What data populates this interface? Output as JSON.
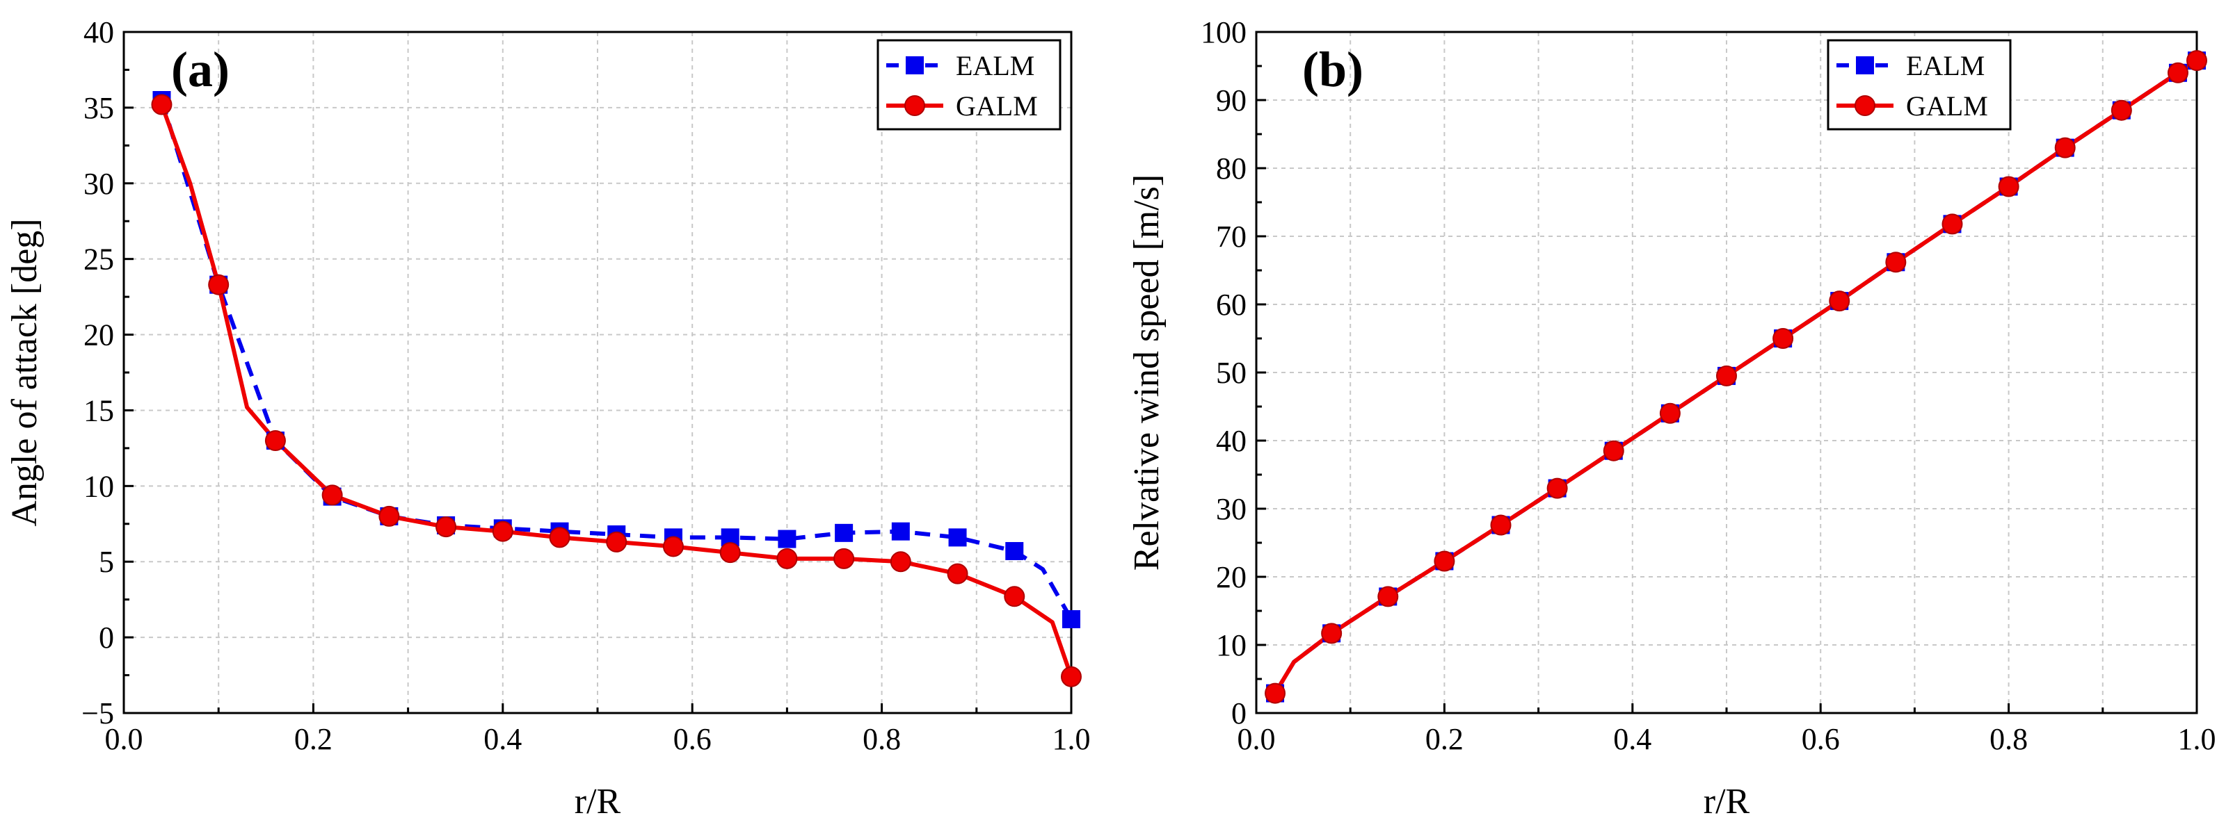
{
  "chart_data": [
    {
      "type": "line",
      "panel_label": "(a)",
      "xlabel": "r/R",
      "ylabel": "Angle of attack [deg]",
      "xlim": [
        0.0,
        1.0
      ],
      "ylim": [
        -5,
        40
      ],
      "xticks": [
        0.0,
        0.2,
        0.4,
        0.6,
        0.8,
        1.0
      ],
      "xtick_labels": [
        "0.0",
        "0.2",
        "0.4",
        "0.6",
        "0.8",
        "1.0"
      ],
      "yticks": [
        -5,
        0,
        5,
        10,
        15,
        20,
        25,
        30,
        35,
        40
      ],
      "ytick_labels": [
        "−5",
        "0",
        "5",
        "10",
        "15",
        "20",
        "25",
        "30",
        "35",
        "40"
      ],
      "grid": true,
      "legend_position": "top-right",
      "series": [
        {
          "name": "EALM",
          "color": "#0000ee",
          "line": "dashed",
          "marker": "square",
          "x": [
            0.04,
            0.1,
            0.16,
            0.22,
            0.28,
            0.34,
            0.4,
            0.46,
            0.52,
            0.58,
            0.64,
            0.7,
            0.76,
            0.82,
            0.88,
            0.94,
            0.97,
            1.0
          ],
          "values": [
            35.5,
            23.3,
            13.0,
            9.3,
            8.0,
            7.4,
            7.2,
            7.0,
            6.8,
            6.6,
            6.6,
            6.5,
            6.9,
            7.0,
            6.6,
            5.7,
            4.5,
            1.2
          ],
          "marker_x": [
            0.04,
            0.1,
            0.16,
            0.22,
            0.28,
            0.34,
            0.4,
            0.46,
            0.52,
            0.58,
            0.64,
            0.7,
            0.76,
            0.82,
            0.88,
            0.94,
            1.0
          ]
        },
        {
          "name": "GALM",
          "color": "#ee0000",
          "line": "solid",
          "marker": "circle",
          "x": [
            0.04,
            0.07,
            0.1,
            0.13,
            0.16,
            0.22,
            0.28,
            0.34,
            0.4,
            0.46,
            0.52,
            0.58,
            0.64,
            0.7,
            0.76,
            0.82,
            0.88,
            0.94,
            0.98,
            1.0
          ],
          "values": [
            35.2,
            30.0,
            23.3,
            15.2,
            13.0,
            9.4,
            8.0,
            7.3,
            7.0,
            6.6,
            6.3,
            6.0,
            5.6,
            5.2,
            5.2,
            5.0,
            4.2,
            2.7,
            1.0,
            -2.6
          ],
          "marker_x": [
            0.04,
            0.1,
            0.16,
            0.22,
            0.28,
            0.34,
            0.4,
            0.46,
            0.52,
            0.58,
            0.64,
            0.7,
            0.76,
            0.82,
            0.88,
            0.94,
            1.0
          ]
        }
      ]
    },
    {
      "type": "line",
      "panel_label": "(b)",
      "xlabel": "r/R",
      "ylabel": "Relvative wind speed [m/s]",
      "xlim": [
        0.0,
        1.0
      ],
      "ylim": [
        0,
        100
      ],
      "xticks": [
        0.0,
        0.2,
        0.4,
        0.6,
        0.8,
        1.0
      ],
      "xtick_labels": [
        "0.0",
        "0.2",
        "0.4",
        "0.6",
        "0.8",
        "1.0"
      ],
      "yticks": [
        0,
        10,
        20,
        30,
        40,
        50,
        60,
        70,
        80,
        90,
        100
      ],
      "ytick_labels": [
        "0",
        "10",
        "20",
        "30",
        "40",
        "50",
        "60",
        "70",
        "80",
        "90",
        "100"
      ],
      "grid": true,
      "legend_position": "top-right",
      "series": [
        {
          "name": "EALM",
          "color": "#0000ee",
          "line": "dashed",
          "marker": "square",
          "x": [
            0.02,
            0.04,
            0.08,
            0.14,
            0.2,
            0.26,
            0.32,
            0.38,
            0.44,
            0.5,
            0.56,
            0.62,
            0.68,
            0.74,
            0.8,
            0.86,
            0.92,
            0.98,
            1.0
          ],
          "values": [
            2.9,
            7.5,
            11.7,
            17.1,
            22.3,
            27.6,
            33.0,
            38.5,
            44.0,
            49.5,
            55.0,
            60.5,
            66.2,
            71.8,
            77.3,
            83.0,
            88.5,
            94.0,
            95.8
          ],
          "marker_x": [
            0.02,
            0.08,
            0.14,
            0.2,
            0.26,
            0.32,
            0.38,
            0.44,
            0.5,
            0.56,
            0.62,
            0.68,
            0.74,
            0.8,
            0.86,
            0.92,
            0.98,
            1.0
          ]
        },
        {
          "name": "GALM",
          "color": "#ee0000",
          "line": "solid",
          "marker": "circle",
          "x": [
            0.02,
            0.04,
            0.08,
            0.14,
            0.2,
            0.26,
            0.32,
            0.38,
            0.44,
            0.5,
            0.56,
            0.62,
            0.68,
            0.74,
            0.8,
            0.86,
            0.92,
            0.98,
            1.0
          ],
          "values": [
            2.9,
            7.5,
            11.7,
            17.1,
            22.3,
            27.6,
            33.0,
            38.5,
            44.0,
            49.5,
            55.0,
            60.5,
            66.2,
            71.8,
            77.3,
            83.0,
            88.5,
            94.0,
            95.8
          ],
          "marker_x": [
            0.02,
            0.08,
            0.14,
            0.2,
            0.26,
            0.32,
            0.38,
            0.44,
            0.5,
            0.56,
            0.62,
            0.68,
            0.74,
            0.8,
            0.86,
            0.92,
            0.98,
            1.0
          ]
        }
      ]
    }
  ]
}
